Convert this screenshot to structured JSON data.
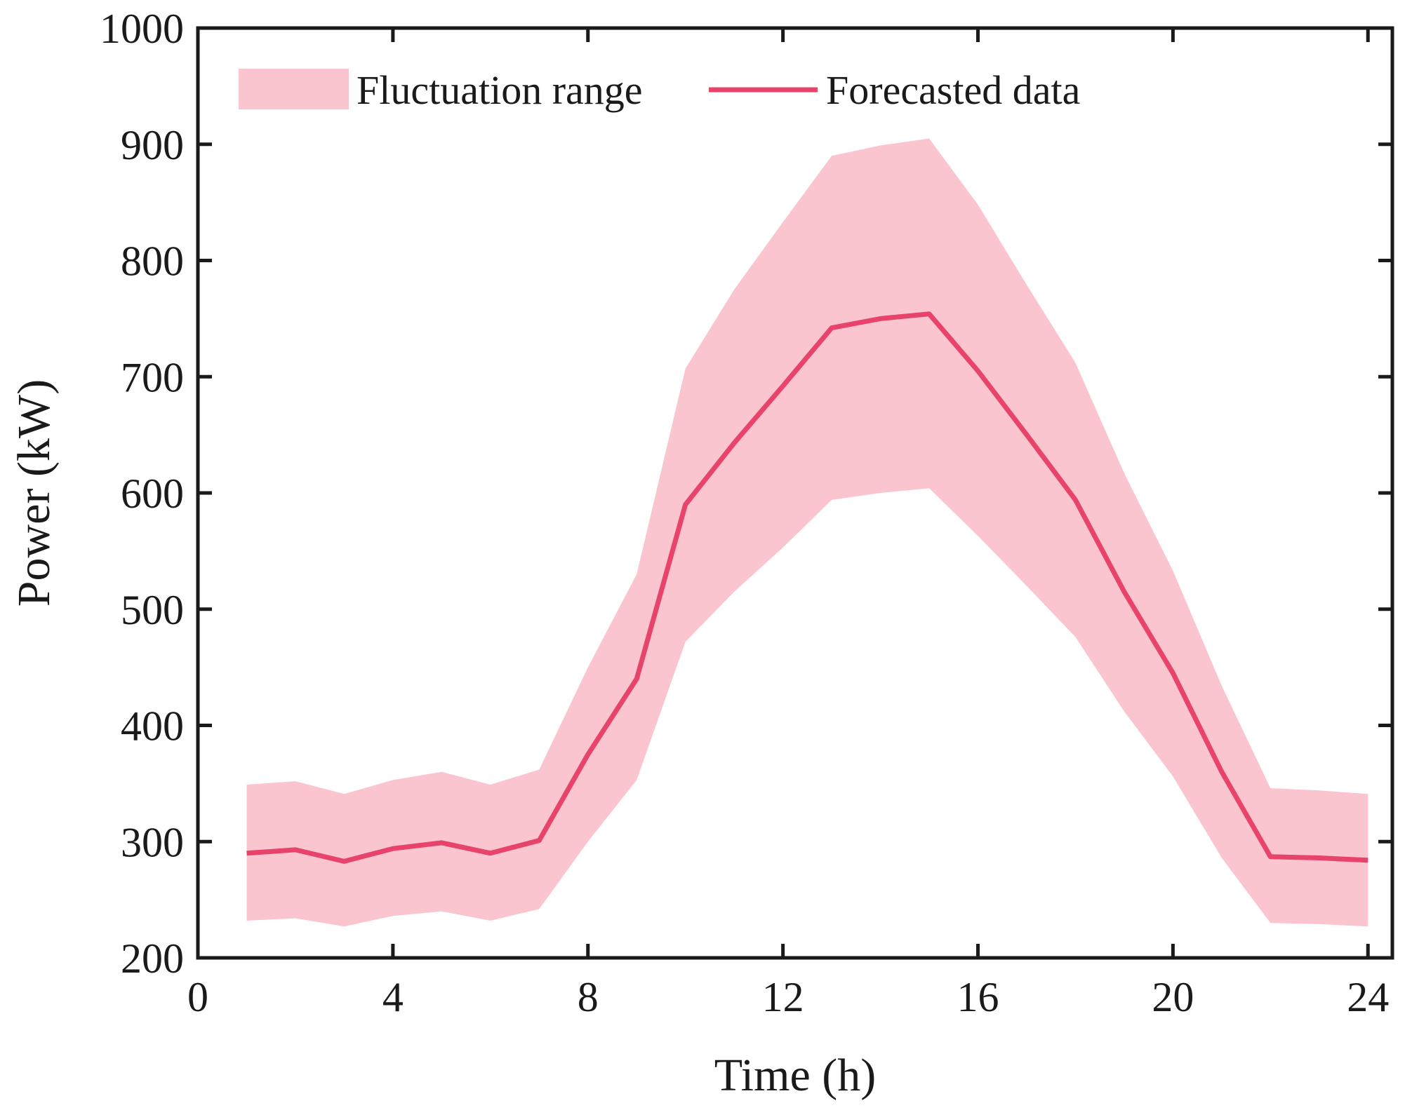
{
  "chart_data": {
    "type": "line",
    "title": "",
    "xlabel": "Time (h)",
    "ylabel": "Power (kW)",
    "xlim": [
      0,
      24.5
    ],
    "ylim": [
      200,
      1000
    ],
    "xticks": [
      0,
      4,
      8,
      12,
      16,
      20,
      24
    ],
    "yticks": [
      200,
      300,
      400,
      500,
      600,
      700,
      800,
      900,
      1000
    ],
    "grid": false,
    "legend_position": "top-left",
    "x": [
      1,
      2,
      3,
      4,
      5,
      6,
      7,
      8,
      9,
      10,
      11,
      12,
      13,
      14,
      15,
      16,
      17,
      18,
      19,
      20,
      21,
      22,
      23,
      24
    ],
    "series": [
      {
        "name": "Forecasted data",
        "kind": "line",
        "color": "#e8436a",
        "values": [
          290,
          293,
          283,
          294,
          299,
          290,
          301,
          375,
          440,
          590,
          643,
          692,
          742,
          750,
          754,
          705,
          650,
          594,
          515,
          445,
          360,
          287,
          286,
          284
        ]
      },
      {
        "name": "Fluctuation range",
        "kind": "band",
        "color": "#fbc5d0",
        "upper": [
          349,
          352,
          341,
          353,
          360,
          349,
          362,
          450,
          530,
          707,
          775,
          833,
          890,
          899,
          905,
          848,
          779,
          712,
          617,
          533,
          434,
          346,
          344,
          341
        ],
        "lower": [
          232,
          234,
          227,
          236,
          240,
          232,
          242,
          300,
          353,
          472,
          515,
          553,
          594,
          600,
          604,
          563,
          520,
          476,
          412,
          356,
          286,
          230,
          229,
          227
        ]
      }
    ]
  }
}
